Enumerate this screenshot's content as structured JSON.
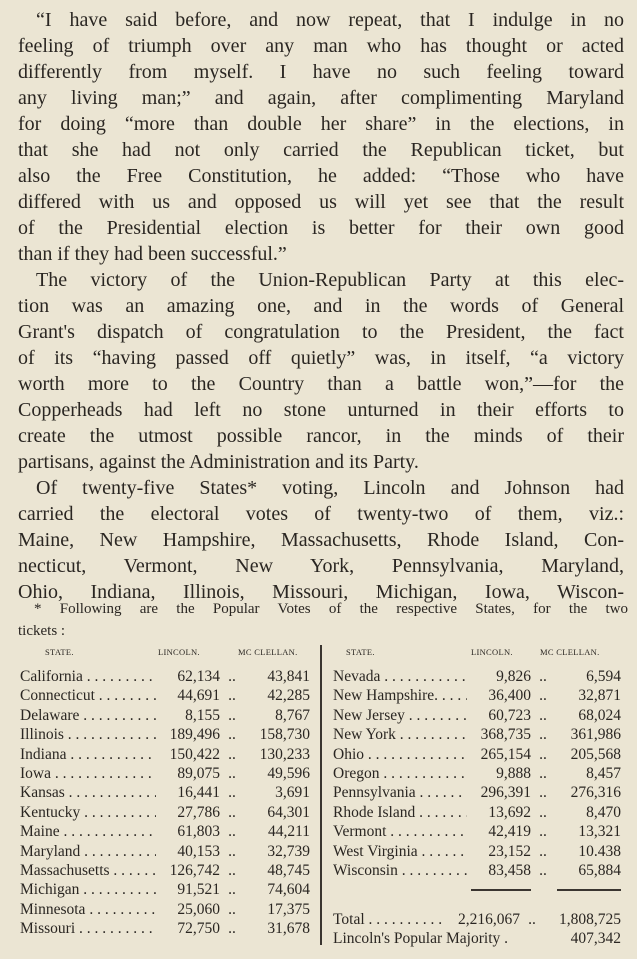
{
  "paragraphs": [
    {
      "lines": [
        "“I have said before, and now repeat, that I indulge in no",
        "feeling of triumph over any man who has thought or acted",
        "differently from myself. I have no such feeling toward",
        "any living man;” and again, after complimenting Maryland",
        "for doing “more than double her share” in the elections, in",
        "that she had not only carried the Republican ticket, but",
        "also the Free Constitution, he added: “Those who have",
        "differed with us and opposed us will yet see that the result",
        "of the Presidential election is better for their own good",
        "than if they had been successful.”"
      ]
    },
    {
      "lines": [
        "The victory of the Union-Republican Party at this elec-",
        "tion was an amazing one, and in the words of General",
        "Grant's dispatch of congratulation to the President, the fact",
        "of its “having passed off quietly” was, in itself, “a victory",
        "worth more to the Country than a battle won,”—for the",
        "Copperheads had left no stone unturned in their efforts to",
        "create the utmost possible rancor, in the minds of their",
        "partisans, against the Administration and its Party."
      ]
    },
    {
      "lines": [
        "Of twenty-five States* voting, Lincoln and Johnson had",
        "carried the electoral votes of twenty-two of them, viz.:",
        "Maine, New Hampshire, Massachusetts, Rhode Island, Con-",
        "necticut, Vermont, New York, Pennsylvania, Maryland,",
        "Ohio, Indiana, Illinois, Missouri, Michigan, Iowa, Wiscon-"
      ]
    }
  ],
  "footnote": {
    "line1": "* Following are the Popular Votes of the respective States, for the two",
    "line2": "tickets :"
  },
  "table": {
    "headers": {
      "state": "STATE.",
      "lincoln": "LINCOLN.",
      "mcclellan": "MC CLELLAN."
    },
    "separator": "..",
    "left": [
      {
        "state": "California",
        "lincoln": "62,134",
        "mcclellan": "43,841"
      },
      {
        "state": "Connecticut",
        "lincoln": "44,691",
        "mcclellan": "42,285"
      },
      {
        "state": "Delaware",
        "lincoln": "8,155",
        "mcclellan": "8,767"
      },
      {
        "state": "Illinois",
        "lincoln": "189,496",
        "mcclellan": "158,730"
      },
      {
        "state": "Indiana",
        "lincoln": "150,422",
        "mcclellan": "130,233"
      },
      {
        "state": "Iowa",
        "lincoln": "89,075",
        "mcclellan": "49,596"
      },
      {
        "state": "Kansas",
        "lincoln": "16,441",
        "mcclellan": "3,691"
      },
      {
        "state": "Kentucky",
        "lincoln": "27,786",
        "mcclellan": "64,301"
      },
      {
        "state": "Maine",
        "lincoln": "61,803",
        "mcclellan": "44,211"
      },
      {
        "state": "Maryland",
        "lincoln": "40,153",
        "mcclellan": "32,739"
      },
      {
        "state": "Massachusetts",
        "lincoln": "126,742",
        "mcclellan": "48,745"
      },
      {
        "state": "Michigan",
        "lincoln": "91,521",
        "mcclellan": "74,604"
      },
      {
        "state": "Minnesota",
        "lincoln": "25,060",
        "mcclellan": "17,375"
      },
      {
        "state": "Missouri",
        "lincoln": "72,750",
        "mcclellan": "31,678"
      }
    ],
    "right": [
      {
        "state": "Nevada",
        "lincoln": "9,826",
        "mcclellan": "6,594"
      },
      {
        "state": "New Hampshire.",
        "lincoln": "36,400",
        "mcclellan": "32,871"
      },
      {
        "state": "New Jersey",
        "lincoln": "60,723",
        "mcclellan": "68,024"
      },
      {
        "state": "New York",
        "lincoln": "368,735",
        "mcclellan": "361,986"
      },
      {
        "state": "Ohio",
        "lincoln": "265,154",
        "mcclellan": "205,568"
      },
      {
        "state": "Oregon",
        "lincoln": "9,888",
        "mcclellan": "8,457"
      },
      {
        "state": "Pennsylvania",
        "lincoln": "296,391",
        "mcclellan": "276,316"
      },
      {
        "state": "Rhode Island",
        "lincoln": "13,692",
        "mcclellan": "8,470"
      },
      {
        "state": "Vermont",
        "lincoln": "42,419",
        "mcclellan": "13,321"
      },
      {
        "state": "West Virginia",
        "lincoln": "23,152",
        "mcclellan": "10.438"
      },
      {
        "state": "Wisconsin",
        "lincoln": "83,458",
        "mcclellan": "65,884"
      }
    ],
    "total": {
      "label": "Total",
      "lincoln": "2,216,067",
      "mcclellan": "1,808,725"
    },
    "majority": {
      "label": "Lincoln's Popular Majority .",
      "value": "407,342"
    }
  }
}
